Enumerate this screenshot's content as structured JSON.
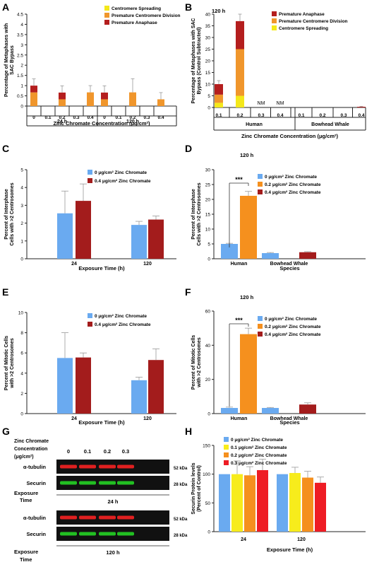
{
  "panels": {
    "A": {
      "letter": "A"
    },
    "B": {
      "letter": "B"
    },
    "C": {
      "letter": "C"
    },
    "D": {
      "letter": "D"
    },
    "E": {
      "letter": "E"
    },
    "F": {
      "letter": "F"
    },
    "G": {
      "letter": "G"
    },
    "H": {
      "letter": "H"
    }
  },
  "colors": {
    "blue": "#6aaaf0",
    "orange": "#f5901e",
    "darkred": "#a31c1c",
    "yellow": "#f7ec1c",
    "red": "#ee1c24",
    "stackYellow": "#f4e81a",
    "stackOrange": "#f0962c",
    "stackRed": "#b41e1e"
  },
  "chart_data": [
    {
      "panel": "A",
      "type": "bar",
      "stacked": true,
      "ylabel": "Percentage of Metaphases with SAC Bypass",
      "xlabel": "Zinc Chromate Concentration (μg/cm²)",
      "ylim": [
        0,
        4.5
      ],
      "yticks": [
        "0",
        "0.5",
        "1",
        "1.5",
        "2",
        "2.5",
        "3",
        "3.5",
        "4",
        "4.5"
      ],
      "categories": [
        "0",
        "0.1",
        "0.2",
        "0.3",
        "0.4",
        "0",
        "0.1",
        "0.2",
        "0.3",
        "0.4"
      ],
      "groups": [
        "24 h",
        "120 h"
      ],
      "series": [
        {
          "name": "Centromere Spreading",
          "color": "#f4e81a",
          "values": [
            0,
            0,
            0,
            0,
            0,
            0,
            0,
            0,
            0,
            0
          ]
        },
        {
          "name": "Premature Centromere Division",
          "color": "#f0962c",
          "values": [
            0.67,
            0,
            0.33,
            0,
            0.67,
            0.33,
            0,
            0.67,
            0,
            0.33
          ]
        },
        {
          "name": "Premature Anaphase",
          "color": "#b41e1e",
          "values": [
            0.33,
            0,
            0.33,
            0,
            0,
            0.33,
            0,
            0,
            0,
            0
          ]
        }
      ],
      "errors": [
        0.33,
        0,
        0.33,
        0,
        0.33,
        0.33,
        0,
        0.67,
        0,
        0.33
      ],
      "legend": "top-right"
    },
    {
      "panel": "B",
      "type": "bar",
      "stacked": true,
      "title": "120 h",
      "ylabel": "Percentage of Metaphases with SAC Bypass (Control Subtracted)",
      "xlabel": "Zinc Chromate Concentration (μg/cm²)",
      "ylim": [
        0,
        40
      ],
      "yticks": [
        "0",
        "5",
        "10",
        "15",
        "20",
        "25",
        "30",
        "35",
        "40"
      ],
      "categories": [
        "0.1",
        "0.2",
        "0.3",
        "0.4",
        "0.1",
        "0.2",
        "0.3",
        "0.4"
      ],
      "groups": [
        "Human",
        "Bowhead Whale"
      ],
      "annotations": [
        "NM",
        "NM"
      ],
      "series": [
        {
          "name": "Premature Anaphase",
          "color": "#b41e1e",
          "values": [
            4.5,
            12,
            0,
            0,
            0,
            0,
            0,
            0.3
          ]
        },
        {
          "name": "Premature Centromere Division",
          "color": "#f0962c",
          "values": [
            3.5,
            20,
            0,
            0,
            0,
            0,
            0,
            0
          ]
        },
        {
          "name": "Centromere Spreading",
          "color": "#f4e81a",
          "values": [
            2,
            5,
            0,
            0,
            0,
            0,
            0,
            0
          ]
        }
      ],
      "errors": [
        1.5,
        3,
        0,
        0,
        0,
        0,
        0,
        0.2
      ],
      "legend": "top-right"
    },
    {
      "panel": "C",
      "type": "bar",
      "ylabel": "Percent of Interphase Cells with >2 Centrosomes",
      "xlabel": "Exposure Time (h)",
      "ylim": [
        0,
        5
      ],
      "yticks": [
        "0",
        "1",
        "2",
        "3",
        "4",
        "5"
      ],
      "categories": [
        "24",
        "120"
      ],
      "series": [
        {
          "name": "0 μg/cm² Zinc Chromate",
          "color": "#6aaaf0",
          "values": [
            2.55,
            1.9
          ],
          "errors": [
            1.25,
            0.2
          ]
        },
        {
          "name": "0.4 μg/cm² Zinc Chromate",
          "color": "#a31c1c",
          "values": [
            3.25,
            2.2
          ],
          "errors": [
            0.95,
            0.2
          ]
        }
      ],
      "legend": "top-right"
    },
    {
      "panel": "D",
      "type": "bar",
      "title": "120 h",
      "ylabel": "Percent of Interphase Cells with >2 Centrosomes",
      "xlabel": "Species",
      "ylim": [
        0,
        30
      ],
      "yticks": [
        "0",
        "5",
        "10",
        "15",
        "20",
        "25",
        "30"
      ],
      "categories": [
        "Human",
        "Bowhead Whale"
      ],
      "significance": "***",
      "series": [
        {
          "name": "0 μg/cm² Zinc Chromate",
          "color": "#6aaaf0",
          "values": [
            5.0,
            1.9
          ],
          "errors": [
            0.2,
            0.2
          ]
        },
        {
          "name": "0.2 μg/cm² Zinc Chromate",
          "color": "#f5901e",
          "values": [
            21.2,
            null
          ],
          "errors": [
            1.5,
            null
          ]
        },
        {
          "name": "0.4 μg/cm² Zinc Chromate",
          "color": "#a31c1c",
          "values": [
            null,
            2.2
          ],
          "errors": [
            null,
            0.2
          ]
        }
      ],
      "legend": "top-right"
    },
    {
      "panel": "E",
      "type": "bar",
      "ylabel": "Percent of Mitotic Cells with >2 Centrosomes",
      "xlabel": "Exposure Time (h)",
      "ylim": [
        0,
        10
      ],
      "yticks": [
        "0",
        "2",
        "4",
        "6",
        "8",
        "10"
      ],
      "categories": [
        "24",
        "120"
      ],
      "series": [
        {
          "name": "0 μg/cm² Zinc Chromate",
          "color": "#6aaaf0",
          "values": [
            5.5,
            3.3
          ],
          "errors": [
            2.5,
            0.3
          ]
        },
        {
          "name": "0.4 μg/cm² Zinc Chromate",
          "color": "#a31c1c",
          "values": [
            5.55,
            5.3
          ],
          "errors": [
            0.45,
            1.1
          ]
        }
      ],
      "legend": "top-right"
    },
    {
      "panel": "F",
      "type": "bar",
      "title": "120 h",
      "ylabel": "Percent of Mitotic Cells with >2 Centrosomes",
      "xlabel": "Species",
      "ylim": [
        0,
        60
      ],
      "yticks": [
        "0",
        "20",
        "40",
        "60"
      ],
      "categories": [
        "Human",
        "Bowhead Whale"
      ],
      "significance": "***",
      "series": [
        {
          "name": "0 μg/cm² Zinc Chromate",
          "color": "#6aaaf0",
          "values": [
            3.3,
            3.3
          ],
          "errors": [
            0.5,
            0.3
          ]
        },
        {
          "name": "0.2 μg/cm² Zinc Chromate",
          "color": "#f5901e",
          "values": [
            46.5,
            null
          ],
          "errors": [
            3.5,
            null
          ]
        },
        {
          "name": "0.4 μg/cm² Zinc Chromate",
          "color": "#a31c1c",
          "values": [
            null,
            5.3
          ],
          "errors": [
            null,
            1.0
          ]
        }
      ],
      "legend": "top-right"
    },
    {
      "panel": "H",
      "type": "bar",
      "ylabel": "Securin Protein levels (Percent of Control)",
      "xlabel": "Exposure Time (h)",
      "ylim": [
        0,
        150
      ],
      "yticks": [
        "0",
        "50",
        "100",
        "150"
      ],
      "categories": [
        "24",
        "120"
      ],
      "series": [
        {
          "name": "0 μg/cm² Zinc Chromate",
          "color": "#6aaaf0",
          "values": [
            100,
            100
          ],
          "errors": [
            0,
            0
          ]
        },
        {
          "name": "0.1 μg/cm² Zinc Chromate",
          "color": "#f7ec1c",
          "values": [
            100,
            102
          ],
          "errors": [
            23,
            10
          ]
        },
        {
          "name": "0.2 μg/cm² Zinc Chromate",
          "color": "#f5901e",
          "values": [
            98,
            94
          ],
          "errors": [
            15,
            11
          ]
        },
        {
          "name": "0.3 μg/cm² Zinc Chromate",
          "color": "#ee1c24",
          "values": [
            107,
            85
          ],
          "errors": [
            19,
            10
          ]
        }
      ],
      "legend": "top-right"
    }
  ],
  "blot": {
    "header_label": "Zinc Chromate Concentration (μg/cm²)",
    "lanes": [
      "0",
      "0.1",
      "0.2",
      "0.3"
    ],
    "row1": "α-tubulin",
    "row2": "Securin",
    "kda1": "52 kDa",
    "kda2": "28 kDa",
    "exposure_label": "Exposure Time",
    "time1": "24 h",
    "time2": "120 h"
  }
}
